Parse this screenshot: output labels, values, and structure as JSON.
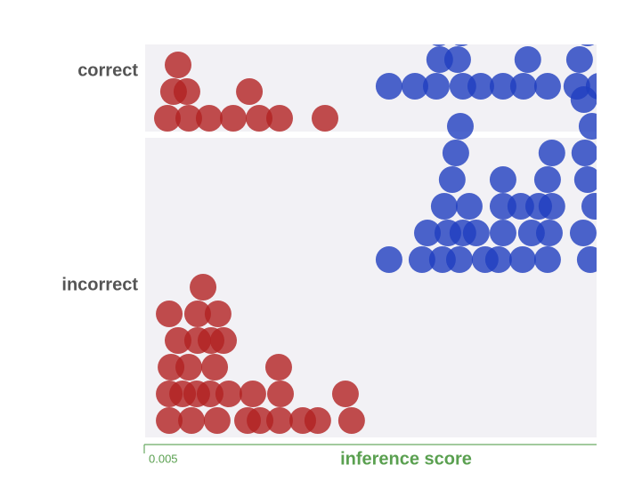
{
  "chart_data": {
    "type": "beeswarm",
    "xlabel": "inference score",
    "categories": [
      "correct",
      "incorrect"
    ],
    "xlim": [
      0.005,
      0.03
    ],
    "xticks": [
      0.005
    ],
    "series": [
      {
        "color": "#b22222",
        "values": [
          [
            0.00746,
            0.00992,
            0.01135,
            0.01248,
            0.00628,
            0.00662,
            0.00687,
            0.00736,
            0.00859,
            0.01081,
            0.01499
          ],
          [
            0.00638,
            0.00761,
            0.00903,
            0.01248,
            0.01376,
            0.00638,
            0.0079,
            0.00864,
            0.0114,
            0.01253,
            0.00746,
            0.00889,
            0.011,
            0.01243,
            0.01646,
            0.00648,
            0.00687,
            0.01459,
            0.01612,
            0.00795,
            0.00869,
            0.00908,
            0.00967,
            0.01071,
            0.00638,
            0.00712,
            0.00795,
            0.00825,
            0.00938
          ]
        ]
      },
      {
        "color": "#1f3fbf",
        "values": [
          [
            0.01853,
            0.02114,
            0.02133,
            0.02261,
            0.02232,
            0.02483,
            0.02596,
            0.02891,
            0.02906,
            0.03014,
            0.01996,
            0.02128,
            0.02252,
            0.0236,
            0.0262,
            0.02729,
            0.0295
          ],
          [
            0.02729,
            0.02035,
            0.02148,
            0.02178,
            0.02242,
            0.02261,
            0.02458,
            0.02591,
            0.02739,
            0.02753,
            0.02965,
            0.02158,
            0.02296,
            0.02384,
            0.02483,
            0.0264,
            0.02729,
            0.02753,
            0.02926,
            0.0299,
            0.02202,
            0.02581,
            0.0295,
            0.01853,
            0.02065,
            0.02222,
            0.02247,
            0.02335,
            0.02483,
            0.0268,
            0.02935,
            0.02975,
            0.02483,
            0.0293
          ]
        ]
      }
    ]
  }
}
